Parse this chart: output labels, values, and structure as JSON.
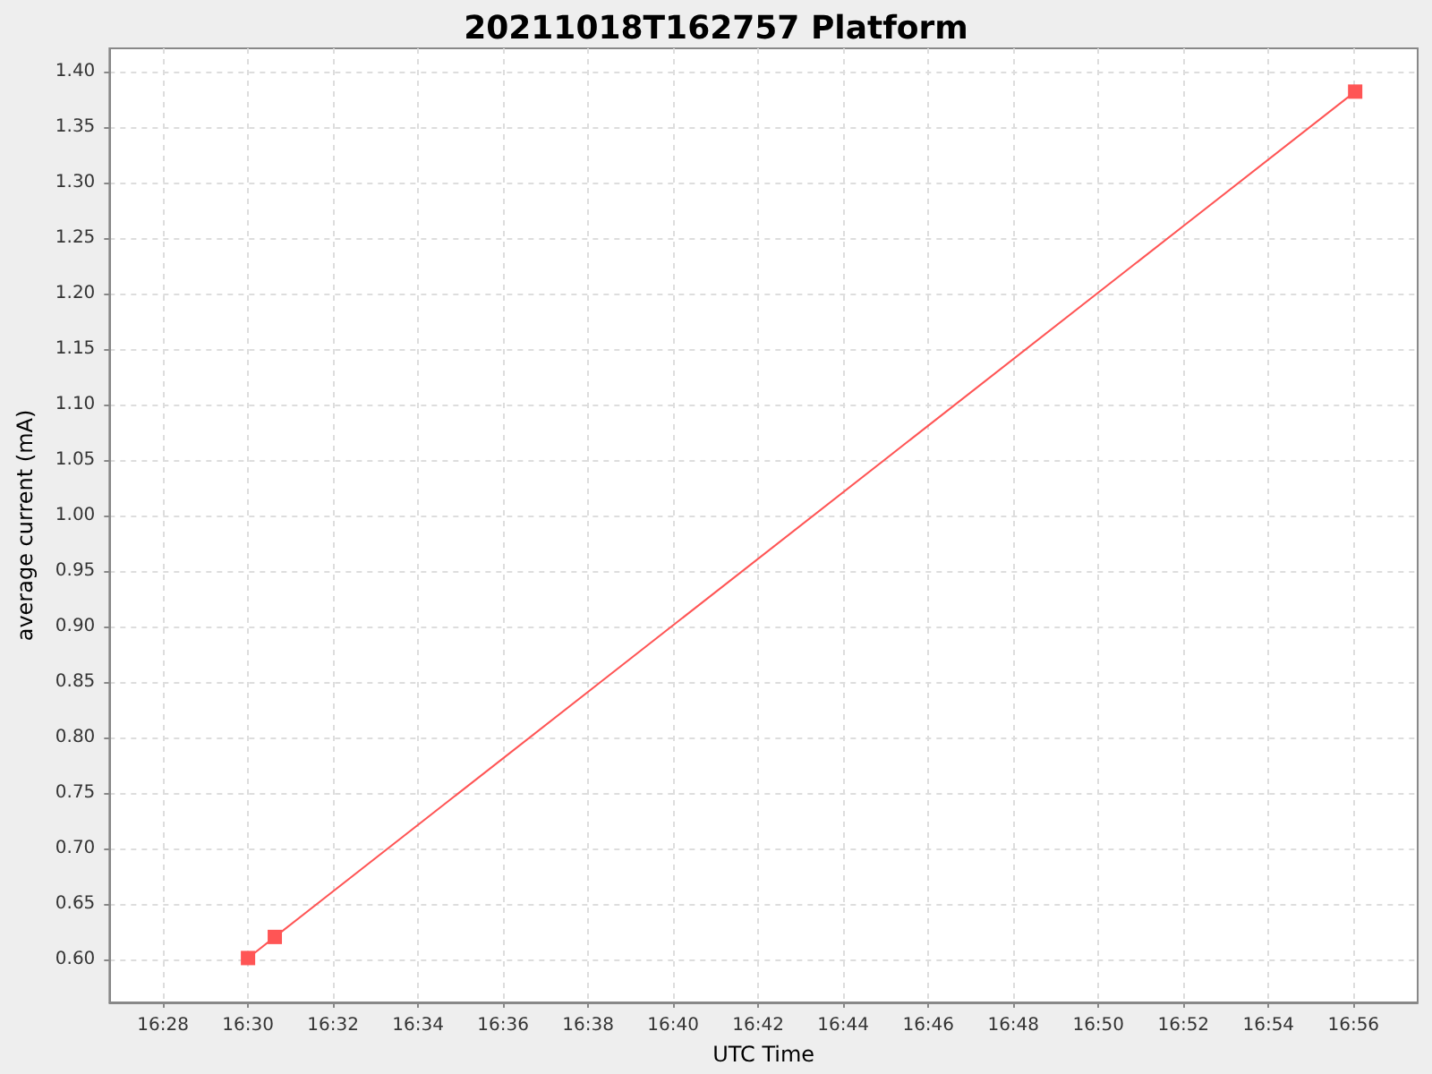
{
  "chart_data": {
    "type": "line",
    "title": "20211018T162757 Platform",
    "xlabel": "UTC Time",
    "ylabel": "average current (mA)",
    "x": [
      16.5,
      16.5105,
      16.934
    ],
    "series": [
      {
        "color": "#ff5555",
        "values": [
          0.601,
          0.62,
          1.382
        ]
      }
    ],
    "xlim": [
      16.4457,
      16.9585
    ],
    "xticks": [
      {
        "value": 16.46667,
        "label": "16:28"
      },
      {
        "value": 16.5,
        "label": "16:30"
      },
      {
        "value": 16.53333,
        "label": "16:32"
      },
      {
        "value": 16.56667,
        "label": "16:34"
      },
      {
        "value": 16.6,
        "label": "16:36"
      },
      {
        "value": 16.63333,
        "label": "16:38"
      },
      {
        "value": 16.66667,
        "label": "16:40"
      },
      {
        "value": 16.7,
        "label": "16:42"
      },
      {
        "value": 16.73333,
        "label": "16:44"
      },
      {
        "value": 16.76667,
        "label": "16:46"
      },
      {
        "value": 16.8,
        "label": "16:48"
      },
      {
        "value": 16.83333,
        "label": "16:50"
      },
      {
        "value": 16.86667,
        "label": "16:52"
      },
      {
        "value": 16.9,
        "label": "16:54"
      },
      {
        "value": 16.93333,
        "label": "16:56"
      }
    ],
    "ylim": [
      0.561,
      1.421
    ],
    "yticks": [
      {
        "value": 0.6,
        "label": "0.60"
      },
      {
        "value": 0.65,
        "label": "0.65"
      },
      {
        "value": 0.7,
        "label": "0.70"
      },
      {
        "value": 0.75,
        "label": "0.75"
      },
      {
        "value": 0.8,
        "label": "0.80"
      },
      {
        "value": 0.85,
        "label": "0.85"
      },
      {
        "value": 0.9,
        "label": "0.90"
      },
      {
        "value": 0.95,
        "label": "0.95"
      },
      {
        "value": 1.0,
        "label": "1.00"
      },
      {
        "value": 1.05,
        "label": "1.05"
      },
      {
        "value": 1.1,
        "label": "1.10"
      },
      {
        "value": 1.15,
        "label": "1.15"
      },
      {
        "value": 1.2,
        "label": "1.20"
      },
      {
        "value": 1.25,
        "label": "1.25"
      },
      {
        "value": 1.3,
        "label": "1.30"
      },
      {
        "value": 1.35,
        "label": "1.35"
      },
      {
        "value": 1.4,
        "label": "1.40"
      }
    ],
    "grid": true,
    "marker": "square",
    "line_style": "solid"
  }
}
